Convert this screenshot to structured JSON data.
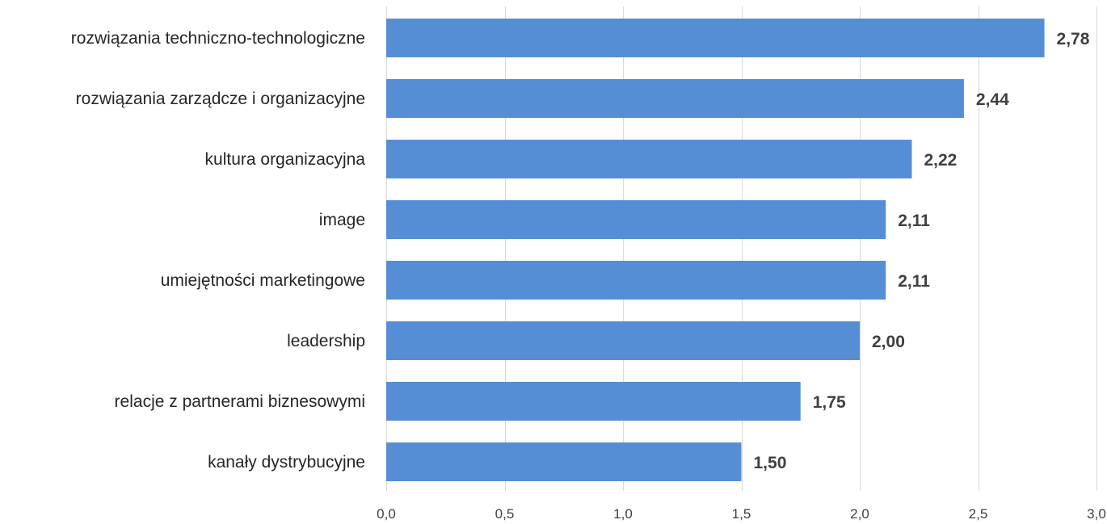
{
  "chart_data": {
    "type": "bar",
    "orientation": "horizontal",
    "title": "",
    "xlabel": "",
    "ylabel": "",
    "categories": [
      "rozwiązania techniczno-technologiczne",
      "rozwiązania zarządcze i organizacyjne",
      "kultura organizacyjna",
      "image",
      "umiejętności marketingowe",
      "leadership",
      "relacje z partnerami biznesowymi",
      "kanały dystrybucyjne"
    ],
    "values": [
      2.78,
      2.44,
      2.22,
      2.11,
      2.11,
      2.0,
      1.75,
      1.5
    ],
    "value_labels": [
      "2,78",
      "2,44",
      "2,22",
      "2,11",
      "2,11",
      "2,00",
      "1,75",
      "1,50"
    ],
    "xlim": [
      0,
      3.0
    ],
    "x_ticks": [
      0,
      0.5,
      1.0,
      1.5,
      2.0,
      2.5,
      3.0
    ],
    "x_tick_labels": [
      "0,0",
      "0,5",
      "1,0",
      "1,5",
      "2,0",
      "2,5",
      "3,0"
    ],
    "grid": "vertical",
    "legend": "none",
    "bar_color": "#558ed5",
    "grid_color": "#d9d9d9"
  }
}
